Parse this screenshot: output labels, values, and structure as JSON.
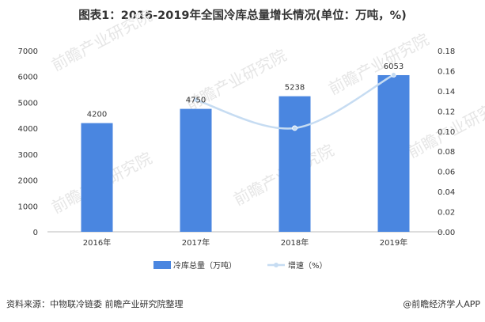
{
  "title": "图表1：2016-2019年全国冷库总量增长情况(单位：万吨，%)",
  "source": "资料来源：中物联冷链委 前瞻产业研究院整理",
  "brand": "@前瞻经济学人APP",
  "watermark": "前瞻产业研究院",
  "colors": {
    "bar": "#4a86e0",
    "line": "#c6dcf2",
    "axis": "#bbbbbb"
  },
  "chart_data": {
    "type": "bar",
    "categories": [
      "2016年",
      "2017年",
      "2018年",
      "2019年"
    ],
    "series": [
      {
        "name": "冷库总量（万吨）",
        "type": "bar",
        "axis": "left",
        "values": [
          4200,
          4750,
          5238,
          6053
        ]
      },
      {
        "name": "增速（%）",
        "type": "line",
        "axis": "right",
        "values": [
          null,
          0.131,
          0.103,
          0.156
        ]
      }
    ],
    "data_labels": [
      "4200",
      "4750",
      "5238",
      "6053"
    ],
    "y_left": {
      "lim": [
        0,
        7000
      ],
      "ticks": [
        0,
        1000,
        2000,
        3000,
        4000,
        5000,
        6000,
        7000
      ]
    },
    "y_right": {
      "lim": [
        0,
        0.18
      ],
      "ticks": [
        "0.00",
        "0.02",
        "0.04",
        "0.06",
        "0.08",
        "0.10",
        "0.12",
        "0.14",
        "0.16",
        "0.18"
      ]
    },
    "legend_position": "bottom",
    "grid": false
  }
}
